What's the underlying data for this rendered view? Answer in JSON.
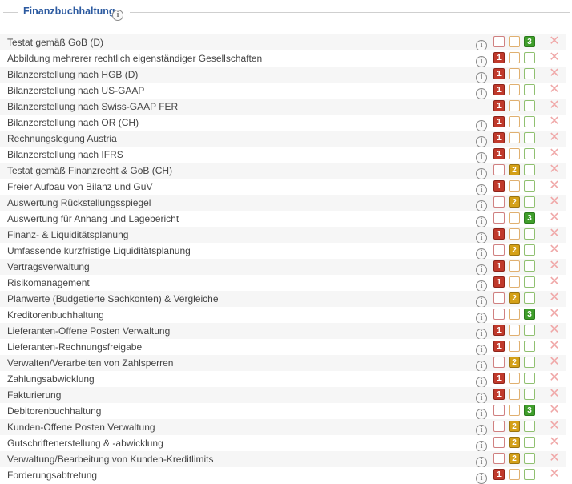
{
  "section": {
    "title": "Finanzbuchhaltung",
    "info_glyph": "i"
  },
  "icons": {
    "info": "info-icon",
    "remove": "close-x-icon"
  },
  "colors": {
    "title": "#2c5aa0",
    "level1": "#c0392b",
    "level2": "#d4a017",
    "level3": "#3f9e2b",
    "remove": "#f0a8a8"
  },
  "rows": [
    {
      "label": "Testat gemäß GoB (D)",
      "info": true,
      "selected": 3
    },
    {
      "label": "Abbildung mehrerer rechtlich eigenständiger Gesellschaften",
      "info": true,
      "selected": 1
    },
    {
      "label": "Bilanzerstellung nach HGB (D)",
      "info": true,
      "selected": 1
    },
    {
      "label": "Bilanzerstellung nach US-GAAP",
      "info": true,
      "selected": 1
    },
    {
      "label": "Bilanzerstellung nach Swiss-GAAP FER",
      "info": false,
      "selected": 1
    },
    {
      "label": "Bilanzerstellung nach OR (CH)",
      "info": true,
      "selected": 1
    },
    {
      "label": "Rechnungslegung Austria",
      "info": true,
      "selected": 1
    },
    {
      "label": "Bilanzerstellung nach IFRS",
      "info": true,
      "selected": 1
    },
    {
      "label": "Testat gemäß Finanzrecht & GoB (CH)",
      "info": true,
      "selected": 2
    },
    {
      "label": "Freier Aufbau von Bilanz und GuV",
      "info": true,
      "selected": 1
    },
    {
      "label": "Auswertung Rückstellungsspiegel",
      "info": true,
      "selected": 2
    },
    {
      "label": "Auswertung für Anhang und Lagebericht",
      "info": true,
      "selected": 3
    },
    {
      "label": "Finanz- & Liquiditätsplanung",
      "info": true,
      "selected": 1
    },
    {
      "label": "Umfassende kurzfristige Liquiditätsplanung",
      "info": true,
      "selected": 2
    },
    {
      "label": "Vertragsverwaltung",
      "info": true,
      "selected": 1
    },
    {
      "label": "Risikomanagement",
      "info": true,
      "selected": 1
    },
    {
      "label": "Planwerte (Budgetierte Sachkonten) & Vergleiche",
      "info": true,
      "selected": 2
    },
    {
      "label": "Kreditorenbuchhaltung",
      "info": true,
      "selected": 3
    },
    {
      "label": "Lieferanten-Offene Posten Verwaltung",
      "info": true,
      "selected": 1
    },
    {
      "label": "Lieferanten-Rechnungsfreigabe",
      "info": true,
      "selected": 1
    },
    {
      "label": "Verwalten/Verarbeiten von Zahlsperren",
      "info": true,
      "selected": 2
    },
    {
      "label": "Zahlungsabwicklung",
      "info": true,
      "selected": 1
    },
    {
      "label": "Fakturierung",
      "info": true,
      "selected": 1
    },
    {
      "label": "Debitorenbuchhaltung",
      "info": true,
      "selected": 3
    },
    {
      "label": "Kunden-Offene Posten Verwaltung",
      "info": true,
      "selected": 2
    },
    {
      "label": "Gutschriftenerstellung & -abwicklung",
      "info": true,
      "selected": 2
    },
    {
      "label": "Verwaltung/Bearbeitung von Kunden-Kreditlimits",
      "info": true,
      "selected": 2
    },
    {
      "label": "Forderungsabtretung",
      "info": true,
      "selected": 1
    }
  ],
  "level_labels": [
    "1",
    "2",
    "3"
  ],
  "remove_glyph": "✕"
}
